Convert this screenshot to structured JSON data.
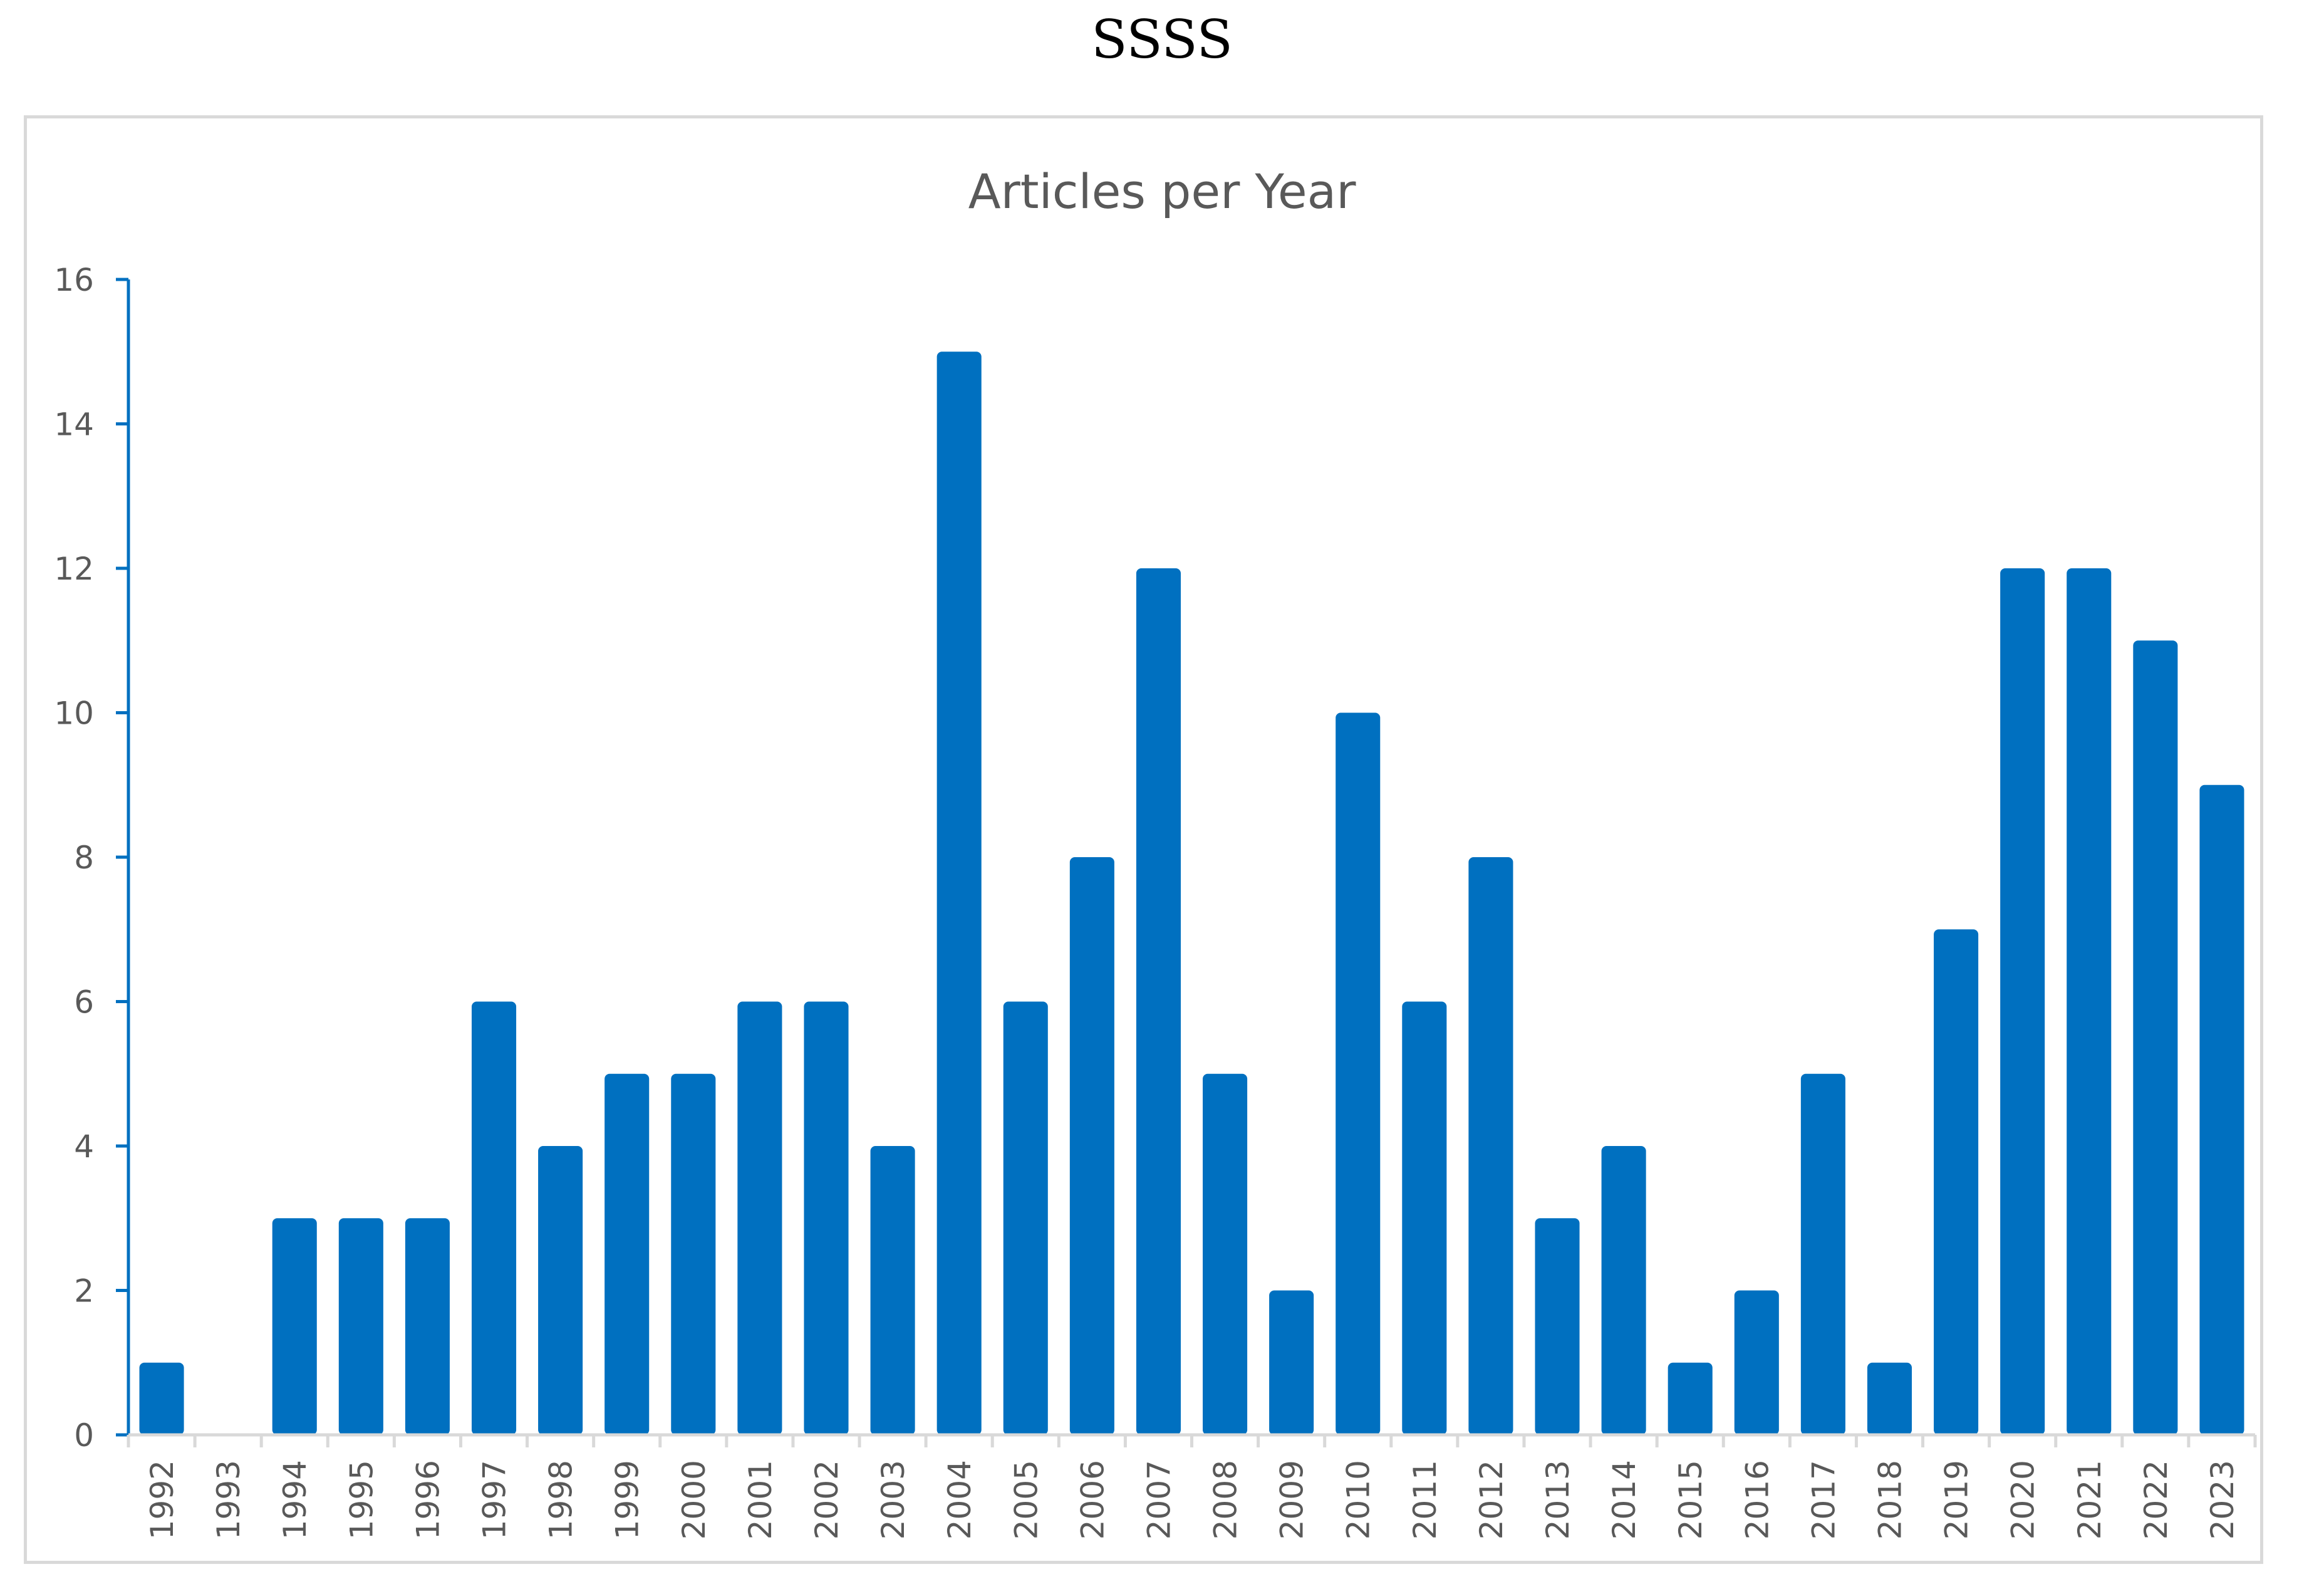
{
  "heading": "SSSS",
  "chart_data": {
    "type": "bar",
    "title": "Articles per Year",
    "xlabel": "",
    "ylabel": "",
    "categories": [
      "1992",
      "1993",
      "1994",
      "1995",
      "1996",
      "1997",
      "1998",
      "1999",
      "2000",
      "2001",
      "2002",
      "2003",
      "2004",
      "2005",
      "2006",
      "2007",
      "2008",
      "2009",
      "2010",
      "2011",
      "2012",
      "2013",
      "2014",
      "2015",
      "2016",
      "2017",
      "2018",
      "2019",
      "2020",
      "2021",
      "2022",
      "2023"
    ],
    "values": [
      1,
      0,
      3,
      3,
      3,
      6,
      4,
      5,
      5,
      6,
      6,
      4,
      15,
      6,
      8,
      12,
      5,
      2,
      10,
      6,
      8,
      3,
      4,
      1,
      2,
      5,
      1,
      7,
      12,
      12,
      11,
      9
    ],
    "ylim": [
      0,
      16
    ],
    "yticks": [
      0,
      2,
      4,
      6,
      8,
      10,
      12,
      14,
      16
    ],
    "grid": false,
    "legend": "none",
    "bar_color": "#0070C0",
    "axis_color": "#0070C0"
  }
}
